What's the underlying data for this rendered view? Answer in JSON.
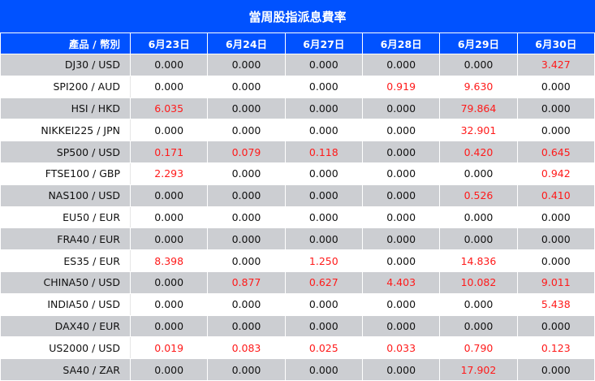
{
  "title": "當周股指派息費率",
  "columns": [
    "產品 / 幣別",
    "6月23日",
    "6月24日",
    "6月27日",
    "6月28日",
    "6月29日",
    "6月30日"
  ],
  "highlight_color": "#ff1a1a",
  "header_color": "#0052ff",
  "rows": [
    {
      "product": "DJ30 / USD",
      "values": [
        "0.000",
        "0.000",
        "0.000",
        "0.000",
        "0.000",
        "3.427"
      ]
    },
    {
      "product": "SPI200 / AUD",
      "values": [
        "0.000",
        "0.000",
        "0.000",
        "0.919",
        "9.630",
        "0.000"
      ]
    },
    {
      "product": "HSI / HKD",
      "values": [
        "6.035",
        "0.000",
        "0.000",
        "0.000",
        "79.864",
        "0.000"
      ]
    },
    {
      "product": "NIKKEI225 / JPN",
      "values": [
        "0.000",
        "0.000",
        "0.000",
        "0.000",
        "32.901",
        "0.000"
      ]
    },
    {
      "product": "SP500 / USD",
      "values": [
        "0.171",
        "0.079",
        "0.118",
        "0.000",
        "0.420",
        "0.645"
      ]
    },
    {
      "product": "FTSE100 / GBP",
      "values": [
        "2.293",
        "0.000",
        "0.000",
        "0.000",
        "0.000",
        "0.942"
      ]
    },
    {
      "product": "NAS100 / USD",
      "values": [
        "0.000",
        "0.000",
        "0.000",
        "0.000",
        "0.526",
        "0.410"
      ]
    },
    {
      "product": "EU50 / EUR",
      "values": [
        "0.000",
        "0.000",
        "0.000",
        "0.000",
        "0.000",
        "0.000"
      ]
    },
    {
      "product": "FRA40 / EUR",
      "values": [
        "0.000",
        "0.000",
        "0.000",
        "0.000",
        "0.000",
        "0.000"
      ]
    },
    {
      "product": "ES35 / EUR",
      "values": [
        "8.398",
        "0.000",
        "1.250",
        "0.000",
        "14.836",
        "0.000"
      ]
    },
    {
      "product": "CHINA50 / USD",
      "values": [
        "0.000",
        "0.877",
        "0.627",
        "4.403",
        "10.082",
        "9.011"
      ]
    },
    {
      "product": "INDIA50 / USD",
      "values": [
        "0.000",
        "0.000",
        "0.000",
        "0.000",
        "0.000",
        "5.438"
      ]
    },
    {
      "product": "DAX40 / EUR",
      "values": [
        "0.000",
        "0.000",
        "0.000",
        "0.000",
        "0.000",
        "0.000"
      ]
    },
    {
      "product": "US2000 / USD",
      "values": [
        "0.019",
        "0.083",
        "0.025",
        "0.033",
        "0.790",
        "0.123"
      ]
    },
    {
      "product": "SA40 / ZAR",
      "values": [
        "0.000",
        "0.000",
        "0.000",
        "0.000",
        "17.902",
        "0.000"
      ]
    }
  ]
}
